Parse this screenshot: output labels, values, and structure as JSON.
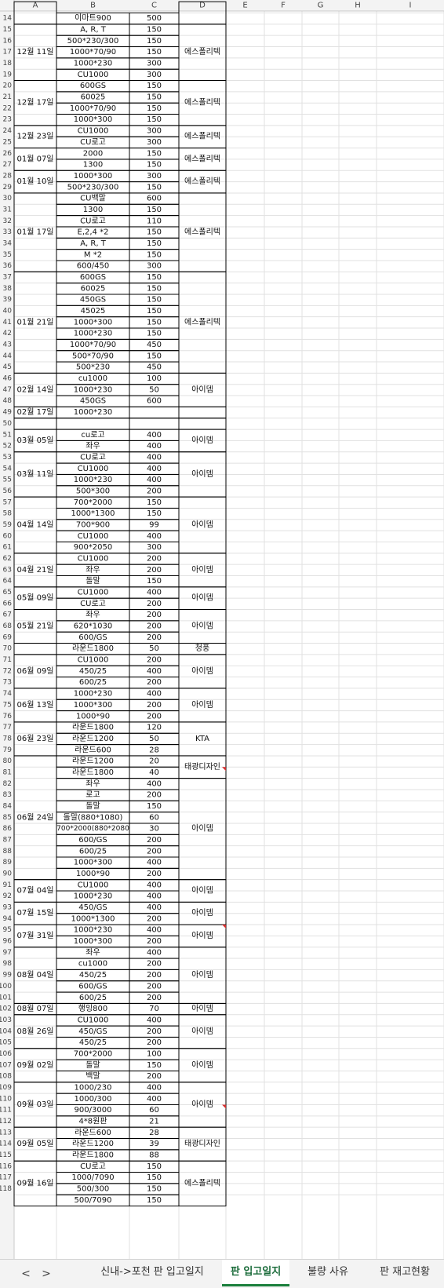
{
  "columns": [
    "A",
    "B",
    "C",
    "D",
    "E",
    "F",
    "G",
    "H",
    "I"
  ],
  "partial_top": {
    "row": 14,
    "date": "",
    "item": "이마트900",
    "qty": "500",
    "vendor": ""
  },
  "groups": [
    {
      "date": "12월 11일",
      "vendor": "에스폴리텍",
      "items": [
        [
          "A, R, T",
          "150"
        ],
        [
          "500*230/300",
          "150"
        ],
        [
          "1000*70/90",
          "150"
        ],
        [
          "1000*230",
          "300"
        ],
        [
          "CU1000",
          "300"
        ]
      ]
    },
    {
      "date": "12월 17일",
      "vendor": "에스폴리텍",
      "items": [
        [
          "600GS",
          "150"
        ],
        [
          "60025",
          "150"
        ],
        [
          "1000*70/90",
          "150"
        ],
        [
          "1000*300",
          "150"
        ]
      ]
    },
    {
      "date": "12월 23일",
      "vendor": "에스폴리텍",
      "items": [
        [
          "CU1000",
          "300"
        ],
        [
          "CU로고",
          "300"
        ]
      ]
    },
    {
      "date": "01월 07일",
      "vendor": "에스폴리텍",
      "items": [
        [
          "2000",
          "150"
        ],
        [
          "1300",
          "150"
        ]
      ]
    },
    {
      "date": "01월 10일",
      "vendor": "에스폴리텍",
      "items": [
        [
          "1000*300",
          "300"
        ],
        [
          "500*230/300",
          "150"
        ]
      ]
    },
    {
      "date": "01월 17일",
      "vendor": "에스폴리텍",
      "items": [
        [
          "CU백말",
          "600"
        ],
        [
          "1300",
          "150"
        ],
        [
          "CU로고",
          "110"
        ],
        [
          "E,2,4 *2",
          "150"
        ],
        [
          "A, R, T",
          "150"
        ],
        [
          "M *2",
          "150"
        ],
        [
          "600/450",
          "300"
        ]
      ]
    },
    {
      "date": "01월 21일",
      "vendor": "에스폴리텍",
      "items": [
        [
          "600GS",
          "150"
        ],
        [
          "60025",
          "150"
        ],
        [
          "450GS",
          "150"
        ],
        [
          "45025",
          "150"
        ],
        [
          "1000*300",
          "150"
        ],
        [
          "1000*230",
          "150"
        ],
        [
          "1000*70/90",
          "450"
        ],
        [
          "500*70/90",
          "150"
        ],
        [
          "500*230",
          "450"
        ]
      ]
    },
    {
      "date": "02월 14일",
      "vendor": "아이뎀",
      "items": [
        [
          "cu1000",
          "100"
        ],
        [
          "1000*230",
          "50"
        ],
        [
          "450GS",
          "600"
        ]
      ]
    },
    {
      "date": "02월 17일",
      "vendor": "",
      "items": [
        [
          "1000*230",
          ""
        ]
      ]
    },
    {
      "date": "",
      "vendor": "",
      "items": [
        [
          "",
          ""
        ]
      ]
    },
    {
      "date": "03월 05일",
      "vendor": "아이뎀",
      "items": [
        [
          "cu로고",
          "400"
        ],
        [
          "좌우",
          "400"
        ]
      ]
    },
    {
      "date": "03월 11일",
      "vendor": "아이뎀",
      "items": [
        [
          "CU로고",
          "400"
        ],
        [
          "CU1000",
          "400"
        ],
        [
          "1000*230",
          "400"
        ],
        [
          "500*300",
          "200"
        ]
      ]
    },
    {
      "date": "04월 14일",
      "vendor": "아이뎀",
      "items": [
        [
          "700*2000",
          "150"
        ],
        [
          "1000*1300",
          "150"
        ],
        [
          "700*900",
          "99"
        ],
        [
          "CU1000",
          "400"
        ],
        [
          "900*2050",
          "300"
        ]
      ]
    },
    {
      "date": "04월 21일",
      "vendor": "아이뎀",
      "items": [
        [
          "CU1000",
          "200"
        ],
        [
          "좌우",
          "200"
        ],
        [
          "돌말",
          "150"
        ]
      ]
    },
    {
      "date": "05월 09일",
      "vendor": "아이뎀",
      "items": [
        [
          "CU1000",
          "400"
        ],
        [
          "CU로고",
          "200"
        ]
      ]
    },
    {
      "date": "05월 21일",
      "vendor": "아이뎀",
      "items": [
        [
          "좌우",
          "200"
        ],
        [
          "620*1030",
          "200"
        ],
        [
          "600/GS",
          "200"
        ]
      ]
    },
    {
      "date": "",
      "vendor": "청풍",
      "items": [
        [
          "라운드1800",
          "50"
        ]
      ]
    },
    {
      "date": "06월 09일",
      "vendor": "아이뎀",
      "items": [
        [
          "CU1000",
          "200"
        ],
        [
          "450/25",
          "400"
        ],
        [
          "600/25",
          "200"
        ]
      ]
    },
    {
      "date": "06월 13일",
      "vendor": "아이뎀",
      "items": [
        [
          "1000*230",
          "400"
        ],
        [
          "1000*300",
          "200"
        ],
        [
          "1000*90",
          "200"
        ]
      ]
    },
    {
      "date": "06월 23일",
      "vendor": "KTA",
      "items": [
        [
          "라운드1800",
          "120"
        ],
        [
          "라운드1200",
          "50"
        ],
        [
          "라운드600",
          "28"
        ]
      ]
    },
    {
      "date": "06월 24일",
      "vendor": "아이뎀",
      "vendor_head": "태광디자인",
      "vendor_head_rows": 2,
      "items": [
        [
          "라운드1200",
          "20"
        ],
        [
          "라운드1800",
          "40"
        ],
        [
          "좌우",
          "400"
        ],
        [
          "로고",
          "200"
        ],
        [
          "돌말",
          "150"
        ],
        [
          "돌말(880*1080)",
          "60"
        ],
        [
          "700*2000(880*2080",
          "30"
        ],
        [
          "600/GS",
          "200"
        ],
        [
          "600/25",
          "200"
        ],
        [
          "1000*300",
          "400"
        ],
        [
          "1000*90",
          "200"
        ]
      ]
    },
    {
      "date": "07월 04일",
      "vendor": "아이뎀",
      "items": [
        [
          "CU1000",
          "400"
        ],
        [
          "1000*230",
          "400"
        ]
      ]
    },
    {
      "date": "07월 15일",
      "vendor": "아이뎀",
      "items": [
        [
          "450/GS",
          "400"
        ],
        [
          "1000*1300",
          "200"
        ]
      ]
    },
    {
      "date": "07월 31일",
      "vendor": "아이뎀",
      "items": [
        [
          "1000*230",
          "400"
        ],
        [
          "1000*300",
          "200"
        ]
      ]
    },
    {
      "date": "08월 04일",
      "vendor": "아이뎀",
      "items": [
        [
          "좌우",
          "400"
        ],
        [
          "cu1000",
          "200"
        ],
        [
          "450/25",
          "200"
        ],
        [
          "600/GS",
          "200"
        ],
        [
          "600/25",
          "200"
        ]
      ]
    },
    {
      "date": "08월 07일",
      "vendor": "아이뎀",
      "items": [
        [
          "행잉800",
          "70"
        ]
      ]
    },
    {
      "date": "08월 26일",
      "vendor": "아이뎀",
      "items": [
        [
          "CU1000",
          "400"
        ],
        [
          "450/GS",
          "200"
        ],
        [
          "450/25",
          "200"
        ]
      ]
    },
    {
      "date": "09월 02일",
      "vendor": "아이뎀",
      "items": [
        [
          "700*2000",
          "100"
        ],
        [
          "돌말",
          "150"
        ],
        [
          "백말",
          "200"
        ]
      ]
    },
    {
      "date": "09월 03일",
      "vendor": "아이뎀",
      "items": [
        [
          "1000/230",
          "400"
        ],
        [
          "1000/300",
          "400"
        ],
        [
          "900/3000",
          "60"
        ],
        [
          "4*8원판",
          "21"
        ]
      ]
    },
    {
      "date": "09월 05일",
      "vendor": "태광디자인",
      "items": [
        [
          "라운드600",
          "28"
        ],
        [
          "라운드1200",
          "39"
        ],
        [
          "라운드1800",
          "88"
        ]
      ]
    },
    {
      "date": "09월 16일",
      "vendor": "에스폴리텍",
      "items": [
        [
          "CU로고",
          "150"
        ],
        [
          "1000/7090",
          "150"
        ],
        [
          "500/300",
          "150"
        ],
        [
          "500/7090",
          "150"
        ]
      ]
    }
  ],
  "comment_marks": [
    81,
    95,
    111
  ],
  "tabs": {
    "prev": "<",
    "next": ">",
    "items": [
      {
        "label": "신내->포천 판 입고일지",
        "active": false
      },
      {
        "label": "판 입고일지",
        "active": true
      },
      {
        "label": "불량 사유",
        "active": false
      },
      {
        "label": "판 재고현황",
        "active": false
      }
    ]
  }
}
